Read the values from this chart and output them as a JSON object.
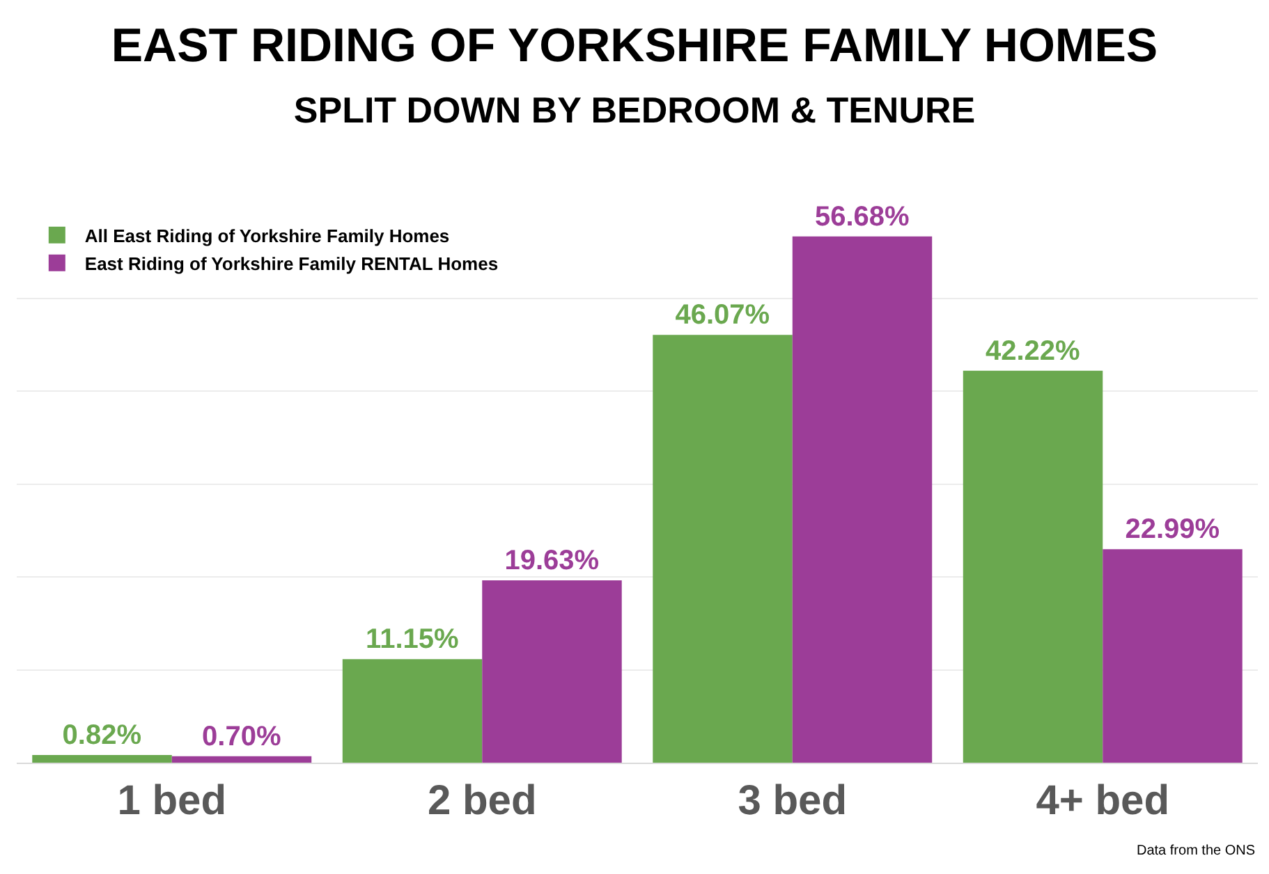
{
  "chart_data": {
    "type": "bar",
    "title": "EAST RIDING OF YORKSHIRE FAMILY HOMES",
    "subtitle": "SPLIT DOWN BY BEDROOM & TENURE",
    "categories": [
      "1 bed",
      "2 bed",
      "3 bed",
      "4+ bed"
    ],
    "series": [
      {
        "name": "All East Riding of Yorkshire Family Homes",
        "color": "#6aa84f",
        "values": [
          0.82,
          11.15,
          46.07,
          42.22
        ],
        "value_labels": [
          "0.82%",
          "11.15%",
          "46.07%",
          "42.22%"
        ]
      },
      {
        "name": "East Riding of Yorkshire Family RENTAL Homes",
        "color": "#9c3d98",
        "values": [
          0.7,
          19.63,
          56.68,
          22.99
        ],
        "value_labels": [
          "0.70%",
          "19.63%",
          "56.68%",
          "22.99%"
        ]
      }
    ],
    "yticks": [
      {
        "value": 0,
        "label": null
      },
      {
        "value": 10,
        "label": null
      },
      {
        "value": 20,
        "label": null
      },
      {
        "value": 30,
        "label": null
      },
      {
        "value": 40,
        "label": null
      },
      {
        "value": 50,
        "label": null
      }
    ],
    "grid": "y",
    "legend": "top left",
    "tick_labels": "x",
    "annotations": [
      "Data from the ONS"
    ]
  }
}
